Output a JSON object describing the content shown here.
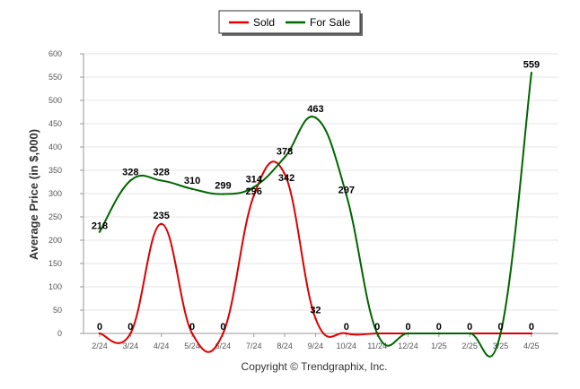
{
  "chart_data": {
    "type": "line",
    "categories": [
      "2/24",
      "3/24",
      "4/24",
      "5/24",
      "6/24",
      "7/24",
      "8/24",
      "9/24",
      "10/24",
      "11/24",
      "12/24",
      "1/25",
      "2/25",
      "3/25",
      "4/25"
    ],
    "series": [
      {
        "name": "Sold",
        "color": "#dd0000",
        "values": [
          0,
          0,
          235,
          0,
          0,
          296,
          342,
          32,
          0,
          0,
          0,
          0,
          0,
          0,
          0
        ],
        "labels": [
          "0",
          "0",
          "235",
          "0",
          "0",
          "296",
          "342",
          "32",
          "0",
          "0",
          "0",
          "0",
          "0",
          "0",
          "0"
        ]
      },
      {
        "name": "For Sale",
        "color": "#006600",
        "values": [
          218,
          328,
          328,
          310,
          299,
          314,
          378,
          463,
          297,
          0,
          0,
          0,
          0,
          0,
          559
        ],
        "labels": [
          "218",
          "328",
          "328",
          "310",
          "299",
          "314",
          "378",
          "463",
          "297",
          "",
          "",
          "",
          "",
          "",
          "559"
        ]
      }
    ],
    "ylabel": "Average Price (in $,000)",
    "ylim": [
      0,
      600
    ],
    "yticks": [
      0,
      50,
      100,
      150,
      200,
      250,
      300,
      350,
      400,
      450,
      500,
      550,
      600
    ],
    "grid": true,
    "legend_position": "top-center"
  },
  "footer": {
    "copyright": "Copyright © Trendgraphix, Inc."
  }
}
